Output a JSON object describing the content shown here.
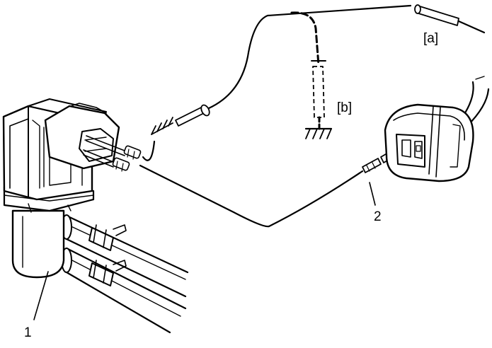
{
  "labels": {
    "probe_a": "[a]",
    "probe_b": "[b]",
    "component": "1",
    "connector": "2"
  },
  "colors": {
    "line": "#000000",
    "background": "#ffffff"
  }
}
